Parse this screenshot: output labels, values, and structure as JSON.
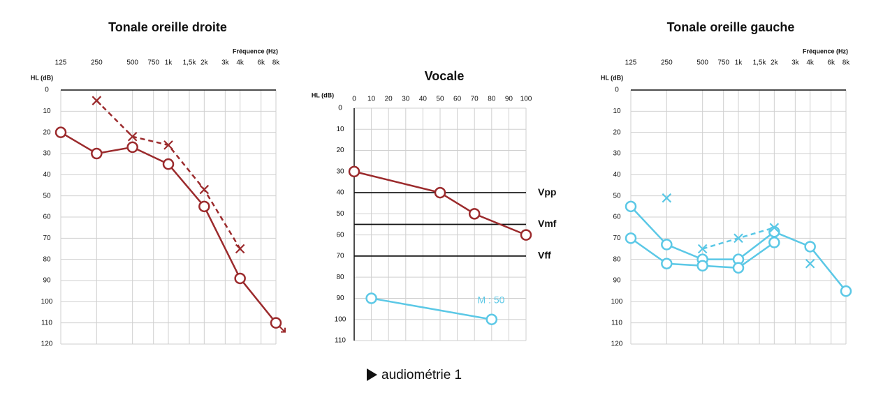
{
  "chart_data": [
    {
      "type": "line",
      "title": "Tonale oreille droite",
      "x_label": "Fréquence (Hz)",
      "y_label": "HL (dB)",
      "xscale": "log",
      "xlim": [
        125,
        8000
      ],
      "xticks": [
        125,
        250,
        500,
        750,
        {
          "value": 1000,
          "label": "1k"
        },
        {
          "value": 1500,
          "label": "1,5k"
        },
        {
          "value": 2000,
          "label": "2k"
        },
        {
          "value": 3000,
          "label": "3k"
        },
        {
          "value": 4000,
          "label": "4k"
        },
        {
          "value": 6000,
          "label": "6k"
        },
        {
          "value": 8000,
          "label": "8k"
        }
      ],
      "ylim": [
        0,
        120
      ],
      "yticks": [
        0,
        10,
        20,
        30,
        40,
        50,
        60,
        70,
        80,
        90,
        100,
        110,
        120
      ],
      "y_inverted": true,
      "axis_line": "top",
      "series": [
        {
          "color": "#9b2a2c",
          "marker": "circle",
          "dashed": false,
          "no_response_last": true,
          "x": [
            125,
            250,
            500,
            1000,
            2000,
            4000,
            8000
          ],
          "values": [
            20,
            30,
            27,
            35,
            55,
            89,
            110
          ]
        },
        {
          "color": "#9b2a2c",
          "marker": "cross",
          "dashed": true,
          "x": [
            250,
            500,
            1000,
            2000,
            4000
          ],
          "values": [
            5,
            22,
            26,
            47,
            75
          ]
        }
      ]
    },
    {
      "type": "line",
      "title": "Vocale",
      "y_label": "HL (dB)",
      "xlim": [
        0,
        100
      ],
      "xticks": [
        0,
        10,
        20,
        30,
        40,
        50,
        60,
        70,
        80,
        90,
        100
      ],
      "ylim": [
        0,
        110
      ],
      "yticks": [
        0,
        10,
        20,
        30,
        40,
        50,
        60,
        70,
        80,
        90,
        100,
        110
      ],
      "y_inverted": true,
      "axis_line": "left",
      "hlines": [
        {
          "value": 40,
          "label": "Vpp"
        },
        {
          "value": 55,
          "label": "Vmf"
        },
        {
          "value": 70,
          "label": "Vff"
        }
      ],
      "annotation": "M : 50",
      "series": [
        {
          "color": "#9b2a2c",
          "marker": "circle",
          "dashed": false,
          "x": [
            0,
            50,
            70,
            100
          ],
          "values": [
            30,
            40,
            50,
            60
          ]
        },
        {
          "color": "#5bc8e6",
          "marker": "circle",
          "dashed": false,
          "x": [
            10,
            80
          ],
          "values": [
            90,
            100
          ]
        }
      ]
    },
    {
      "type": "line",
      "title": "Tonale oreille gauche",
      "x_label": "Fréquence (Hz)",
      "y_label": "HL (dB)",
      "xscale": "log",
      "xlim": [
        125,
        8000
      ],
      "xticks": [
        125,
        250,
        500,
        750,
        {
          "value": 1000,
          "label": "1k"
        },
        {
          "value": 1500,
          "label": "1,5k"
        },
        {
          "value": 2000,
          "label": "2k"
        },
        {
          "value": 3000,
          "label": "3k"
        },
        {
          "value": 4000,
          "label": "4k"
        },
        {
          "value": 6000,
          "label": "6k"
        },
        {
          "value": 8000,
          "label": "8k"
        }
      ],
      "ylim": [
        0,
        120
      ],
      "yticks": [
        0,
        10,
        20,
        30,
        40,
        50,
        60,
        70,
        80,
        90,
        100,
        110,
        120
      ],
      "y_inverted": true,
      "axis_line": "top",
      "series": [
        {
          "color": "#5bc8e6",
          "marker": "circle",
          "dashed": false,
          "x": [
            125,
            250,
            500,
            1000,
            2000,
            4000,
            8000
          ],
          "values": [
            55,
            73,
            80,
            80,
            67,
            74,
            95
          ]
        },
        {
          "color": "#5bc8e6",
          "marker": "circle",
          "dashed": false,
          "x": [
            125,
            250,
            500,
            1000,
            2000
          ],
          "values": [
            70,
            82,
            83,
            84,
            72
          ]
        },
        {
          "color": "#5bc8e6",
          "marker": "cross",
          "dashed": true,
          "x": [
            500,
            1000,
            2000
          ],
          "values": [
            75,
            70,
            65
          ]
        },
        {
          "color": "#5bc8e6",
          "marker": "cross",
          "line": false,
          "x": [
            250,
            4000
          ],
          "values": [
            51,
            82
          ]
        }
      ]
    }
  ],
  "caption": "audiométrie 1"
}
